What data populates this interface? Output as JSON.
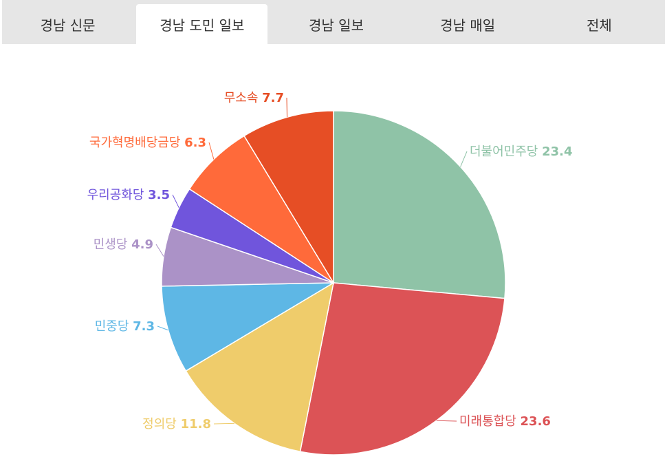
{
  "tabs": [
    {
      "label": "경남 신문"
    },
    {
      "label": "경남 도민 일보"
    },
    {
      "label": "경남 일보"
    },
    {
      "label": "경남 매일"
    },
    {
      "label": "전체"
    }
  ],
  "active_tab": 1,
  "chart_data": {
    "type": "pie",
    "categories": [
      "더불어민주당",
      "미래통합당",
      "정의당",
      "민중당",
      "민생당",
      "우리공화당",
      "국가혁명배당금당",
      "무소속"
    ],
    "values": [
      23.4,
      23.6,
      11.8,
      7.3,
      4.9,
      3.5,
      6.3,
      7.7
    ],
    "colors": [
      "#8fc3a7",
      "#dc5356",
      "#efcc6b",
      "#5eb7e5",
      "#ab92c7",
      "#7055dc",
      "#ff6a3a",
      "#e64e25"
    ]
  }
}
